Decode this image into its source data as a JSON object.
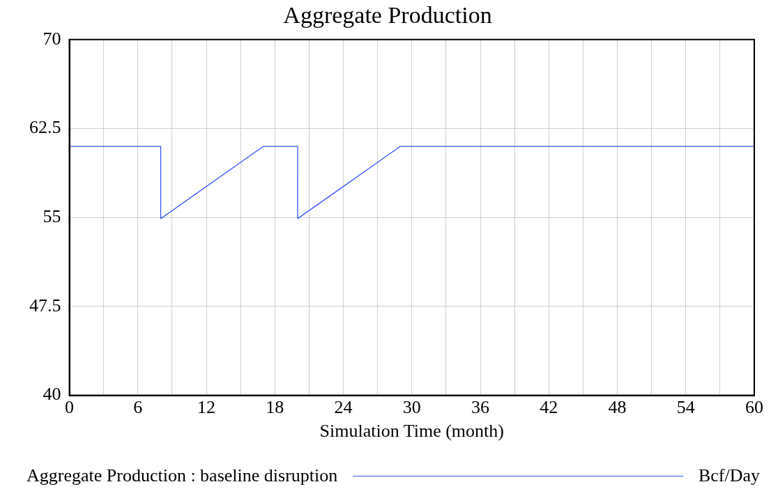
{
  "chart_data": {
    "type": "line",
    "title": "Aggregate Production",
    "xlabel": "Simulation Time (month)",
    "series": [
      {
        "name": "Aggregate Production : baseline disruption",
        "color": "#3355ff",
        "x": [
          0,
          8,
          8,
          17,
          20,
          20,
          29,
          60
        ],
        "values": [
          61,
          61,
          54.9,
          61,
          61,
          54.9,
          61,
          61
        ]
      }
    ],
    "xlim": [
      0,
      60
    ],
    "xticks": [
      0,
      {
        "value": 3,
        "label": null
      },
      6,
      {
        "value": 9,
        "label": null
      },
      12,
      {
        "value": 15,
        "label": null
      },
      18,
      {
        "value": 21,
        "label": null
      },
      24,
      {
        "value": 27,
        "label": null
      },
      30,
      {
        "value": 33,
        "label": null
      },
      36,
      {
        "value": 39,
        "label": null
      },
      42,
      {
        "value": 45,
        "label": null
      },
      48,
      {
        "value": 51,
        "label": null
      },
      54,
      {
        "value": 57,
        "label": null
      },
      60
    ],
    "ylim": [
      40,
      70
    ],
    "yticks": [
      40,
      47.5,
      55,
      62.5,
      70
    ],
    "grid": true,
    "legend": "bottom",
    "marker": "none",
    "line_style": "solid",
    "annotations": [
      "Bcf/Day"
    ]
  }
}
